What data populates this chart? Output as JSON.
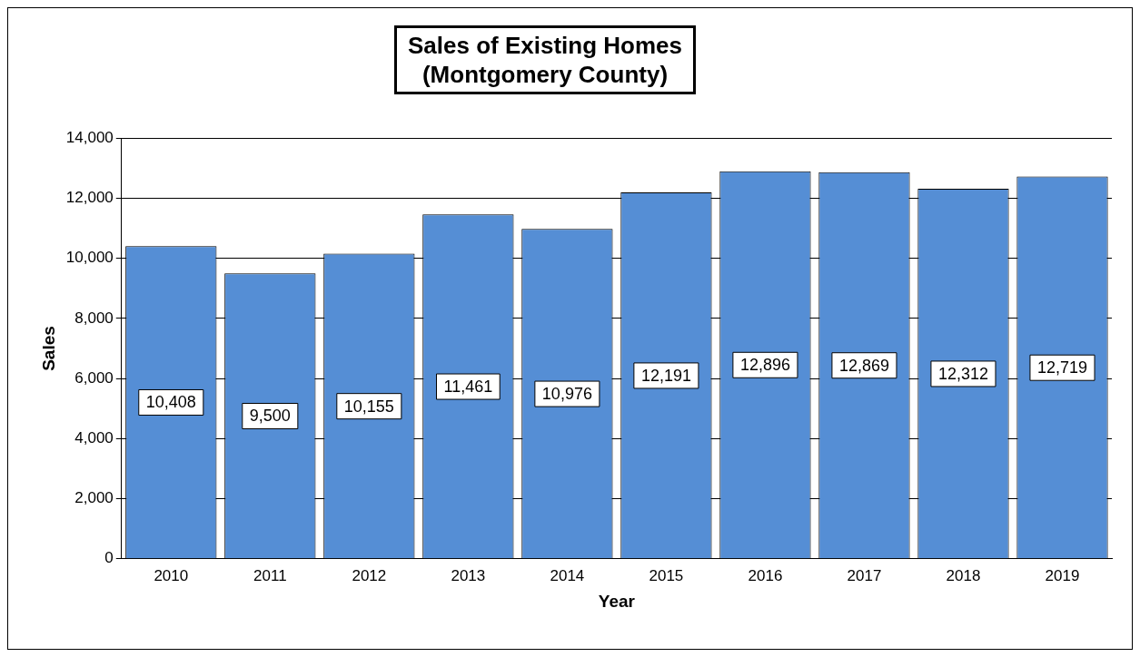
{
  "chart_data": {
    "type": "bar",
    "title": "Sales of Existing Homes\n(Montgomery County)",
    "xlabel": "Year",
    "ylabel": "Sales",
    "categories": [
      "2010",
      "2011",
      "2012",
      "2013",
      "2014",
      "2015",
      "2016",
      "2017",
      "2018",
      "2019"
    ],
    "values": [
      10408,
      9500,
      10155,
      11461,
      10976,
      12191,
      12896,
      12869,
      12312,
      12719
    ],
    "value_labels": [
      "10,408",
      "9,500",
      "10,155",
      "11,461",
      "10,976",
      "12,191",
      "12,896",
      "12,869",
      "12,312",
      "12,719"
    ],
    "color": "#558ed5",
    "ylim": [
      0,
      14000
    ],
    "yticks": [
      0,
      {
        "value": 2000,
        "label": "2,000"
      },
      {
        "value": 4000,
        "label": "4,000"
      },
      {
        "value": 6000,
        "label": "6,000"
      },
      {
        "value": 8000,
        "label": "8,000"
      },
      {
        "value": 10000,
        "label": "10,000"
      },
      {
        "value": 12000,
        "label": "12,000"
      },
      {
        "value": 14000,
        "label": "14,000"
      }
    ],
    "grid": "y"
  }
}
